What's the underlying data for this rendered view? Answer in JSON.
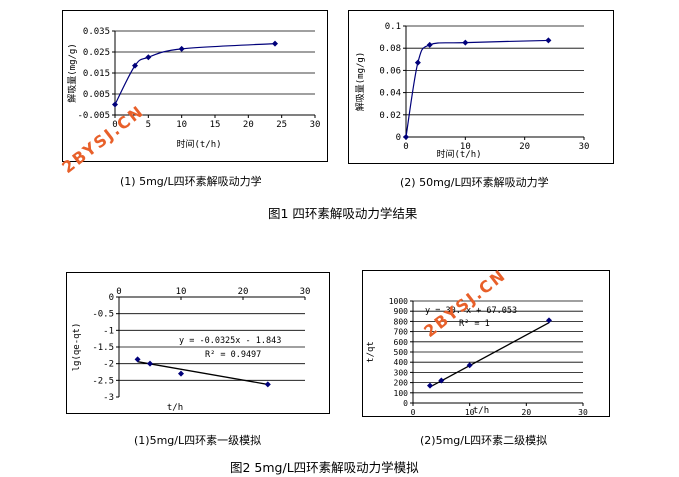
{
  "chart_data": [
    {
      "type": "scatter",
      "title": "",
      "xlabel": "时间(t/h)",
      "ylabel": "解吸量(mg/g)",
      "xlim": [
        0,
        30
      ],
      "ylim": [
        -0.005,
        0.035
      ],
      "xticks": [
        "0",
        "5",
        "10",
        "15",
        "20",
        "25",
        "30"
      ],
      "yticks": [
        "-0.005",
        "0.005",
        "0.015",
        "0.025",
        "0.035"
      ],
      "series": [
        {
          "x": [
            0,
            3,
            5,
            10,
            24
          ],
          "y": [
            0,
            0.0185,
            0.0225,
            0.0265,
            0.029
          ]
        }
      ],
      "grid": "horizontal",
      "smooth": true
    },
    {
      "type": "scatter",
      "title": "",
      "xlabel": "时间(t/h)",
      "ylabel": "解吸量(mg/g)",
      "xlim": [
        0,
        30
      ],
      "ylim": [
        0,
        0.1
      ],
      "xticks": [
        "0",
        "10",
        "20",
        "30"
      ],
      "yticks": [
        "0",
        "0.02",
        "0.04",
        "0.06",
        "0.08",
        "0.1"
      ],
      "series": [
        {
          "x": [
            0,
            2,
            4,
            10,
            24
          ],
          "y": [
            0,
            0.067,
            0.083,
            0.085,
            0.087
          ]
        }
      ],
      "grid": "horizontal",
      "smooth": true
    },
    {
      "type": "scatter",
      "title": "",
      "xlabel": "t/h",
      "ylabel": "lg(qe-qt)",
      "xlim": [
        0,
        30
      ],
      "ylim": [
        -3,
        0
      ],
      "xticks": [
        "0",
        "10",
        "20",
        "30"
      ],
      "yticks": [
        "0",
        "-0.5",
        "-1",
        "-1.5",
        "-2",
        "-2.5",
        "-3"
      ],
      "series": [
        {
          "x": [
            3,
            5,
            10,
            24
          ],
          "y": [
            -1.87,
            -2.0,
            -2.3,
            -2.62
          ]
        }
      ],
      "trendline": {
        "x": [
          3,
          24
        ],
        "y": [
          -1.9405,
          -2.623
        ]
      },
      "annotations": [
        "y = -0.0325x - 1.843",
        "R² = 0.9497"
      ],
      "grid": "horizontal"
    },
    {
      "type": "scatter",
      "title": "",
      "xlabel": "t/h",
      "ylabel": "t/qt",
      "xlim": [
        0,
        30
      ],
      "ylim": [
        0,
        1000
      ],
      "xticks": [
        "0",
        "10",
        "20",
        "30"
      ],
      "yticks": [
        "0",
        "100",
        "200",
        "300",
        "400",
        "500",
        "600",
        "700",
        "800",
        "900",
        "1000"
      ],
      "series": [
        {
          "x": [
            3,
            5,
            10,
            24
          ],
          "y": [
            170,
            220,
            370,
            810
          ]
        }
      ],
      "trendline": {
        "x": [
          3,
          24
        ],
        "y": [
          157,
          787
        ]
      },
      "annotations": [
        "y = 30.   x + 67.053",
        "R² = 1"
      ],
      "grid": "horizontal"
    }
  ],
  "captions": {
    "c1": "(1) 5mg/L四环素解吸动力学",
    "c2": "(2) 50mg/L四环素解吸动力学",
    "fig1": "图1 四环素解吸动力学结果",
    "c3": "(1)5mg/L四环素一级模拟",
    "c4": "(2)5mg/L四环素二级模拟",
    "fig2": "图2 5mg/L四环素解吸动力学模拟"
  },
  "watermark": "2BYSJ.CN",
  "colors": {
    "data": "#00007a",
    "line": "#000000",
    "watermark": "#e8602a"
  }
}
